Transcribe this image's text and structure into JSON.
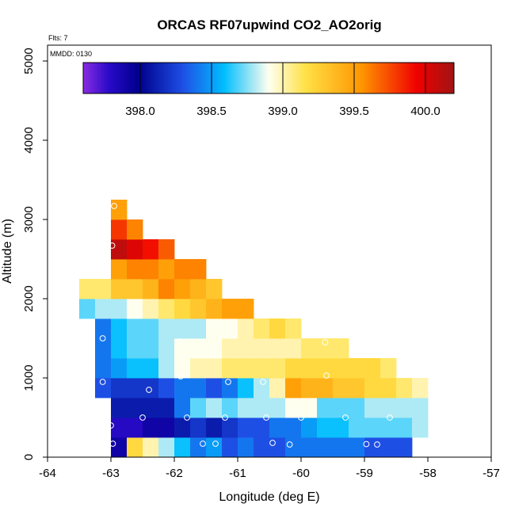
{
  "chart_data": {
    "type": "heatmap",
    "title": "ORCAS RF07upwind CO2_AO2orig",
    "flights_label": "Flts: 7",
    "date_label": "MMDD: 0130",
    "xlabel": "Longitude (deg E)",
    "ylabel": "Altitude (m)",
    "xlim": [
      -64,
      -57
    ],
    "ylim": [
      0,
      5200
    ],
    "x_ticks": [
      -64,
      -63,
      -62,
      -61,
      -60,
      -59,
      -58,
      -57
    ],
    "y_ticks": [
      0,
      1000,
      2000,
      3000,
      4000,
      5000
    ],
    "colorbar": {
      "vmin": 397.6,
      "vmax": 400.2,
      "ticks": [
        398.0,
        398.5,
        399.0,
        399.5,
        400.0
      ],
      "tick_labels": [
        "398.0",
        "398.5",
        "399.0",
        "399.5",
        "400.0"
      ]
    },
    "cell_width_deg": 0.25,
    "cell_height_m": 250,
    "rows": [
      {
        "alt": 0,
        "lon_start": -63.0,
        "values": [
          397.9,
          399.2,
          399.0,
          398.8,
          398.6,
          398.4,
          398.5,
          398.3,
          398.4,
          398.3,
          398.3,
          398.4,
          398.4,
          398.4,
          398.4,
          398.4,
          398.3,
          398.3,
          398.3
        ]
      },
      {
        "alt": 250,
        "lon_start": -63.0,
        "values": [
          397.8,
          397.8,
          397.9,
          397.9,
          398.1,
          398.2,
          398.1,
          398.2,
          398.3,
          398.3,
          398.4,
          398.4,
          398.5,
          398.6,
          398.6,
          398.7,
          398.7,
          398.7,
          398.7,
          398.8
        ]
      },
      {
        "alt": 500,
        "lon_start": -63.0,
        "values": [
          398.1,
          398.1,
          398.1,
          398.1,
          398.4,
          398.7,
          398.8,
          398.7,
          398.8,
          398.8,
          398.8,
          398.9,
          398.9,
          398.7,
          398.7,
          398.7,
          398.8,
          398.8,
          398.8,
          398.8
        ]
      },
      {
        "alt": 750,
        "lon_start": -63.25,
        "values": [
          398.3,
          398.2,
          398.2,
          398.2,
          398.3,
          398.4,
          398.4,
          398.3,
          398.4,
          398.6,
          398.8,
          399.0,
          399.5,
          399.4,
          399.4,
          399.3,
          399.3,
          399.2,
          399.2,
          399.1,
          399.0
        ]
      },
      {
        "alt": 1000,
        "lon_start": -63.25,
        "values": [
          398.4,
          398.5,
          398.6,
          398.6,
          398.8,
          398.9,
          399.0,
          399.0,
          399.1,
          399.1,
          399.1,
          399.1,
          399.2,
          399.2,
          399.2,
          399.2,
          399.2,
          399.2,
          399.1
        ]
      },
      {
        "alt": 1250,
        "lon_start": -63.25,
        "values": [
          398.4,
          398.6,
          398.7,
          398.7,
          398.8,
          398.9,
          398.9,
          398.9,
          399.0,
          399.0,
          399.0,
          399.0,
          399.0,
          399.1,
          399.1,
          399.1
        ]
      },
      {
        "alt": 1500,
        "lon_start": -63.25,
        "values": [
          398.4,
          398.6,
          398.7,
          398.7,
          398.8,
          398.8,
          398.8,
          398.9,
          398.9,
          399.0,
          399.1,
          399.2,
          399.1
        ]
      },
      {
        "alt": 1750,
        "lon_start": -63.5,
        "values": [
          398.7,
          398.8,
          398.8,
          398.9,
          399.0,
          399.1,
          399.2,
          399.3,
          399.4,
          399.5,
          399.5
        ]
      },
      {
        "alt": 2000,
        "lon_start": -63.5,
        "values": [
          399.1,
          399.1,
          399.3,
          399.3,
          399.4,
          399.6,
          399.5,
          399.4,
          399.3
        ]
      },
      {
        "alt": 2250,
        "lon_start": -63.0,
        "values": [
          399.5,
          399.6,
          399.6,
          399.5,
          399.6,
          399.6
        ]
      },
      {
        "alt": 2500,
        "lon_start": -63.0,
        "values": [
          400.1,
          400.0,
          399.9,
          399.7
        ]
      },
      {
        "alt": 2750,
        "lon_start": -63.0,
        "values": [
          399.8,
          399.6
        ]
      },
      {
        "alt": 3000,
        "lon_start": -63.0,
        "values": [
          399.5
        ]
      }
    ],
    "points": [
      {
        "lon": -62.95,
        "alt": 3170
      },
      {
        "lon": -62.98,
        "alt": 2670
      },
      {
        "lon": -63.13,
        "alt": 1500
      },
      {
        "lon": -63.13,
        "alt": 950
      },
      {
        "lon": -62.4,
        "alt": 850
      },
      {
        "lon": -61.9,
        "alt": 1020
      },
      {
        "lon": -61.15,
        "alt": 950
      },
      {
        "lon": -60.6,
        "alt": 950
      },
      {
        "lon": -59.6,
        "alt": 1030
      },
      {
        "lon": -62.5,
        "alt": 500
      },
      {
        "lon": -61.8,
        "alt": 500
      },
      {
        "lon": -61.2,
        "alt": 500
      },
      {
        "lon": -60.55,
        "alt": 500
      },
      {
        "lon": -60.0,
        "alt": 500
      },
      {
        "lon": -59.3,
        "alt": 500
      },
      {
        "lon": -58.6,
        "alt": 500
      },
      {
        "lon": -63.0,
        "alt": 400
      },
      {
        "lon": -62.97,
        "alt": 170
      },
      {
        "lon": -61.55,
        "alt": 170
      },
      {
        "lon": -61.35,
        "alt": 170
      },
      {
        "lon": -60.45,
        "alt": 180
      },
      {
        "lon": -60.18,
        "alt": 160
      },
      {
        "lon": -58.97,
        "alt": 165
      },
      {
        "lon": -58.8,
        "alt": 160
      },
      {
        "lon": -59.62,
        "alt": 1450
      },
      {
        "lon": -61.9,
        "alt": 1460
      }
    ]
  }
}
